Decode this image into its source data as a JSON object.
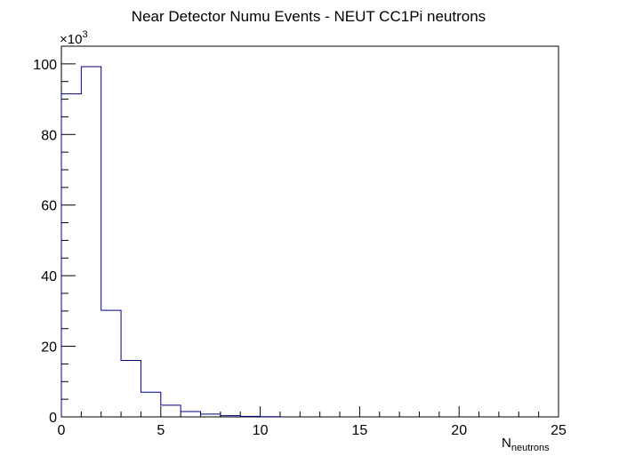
{
  "chart_data": {
    "type": "bar",
    "title": "Near Detector Numu Events - NEUT CC1Pi neutrons",
    "xlabel": "N",
    "xlabel_subscript": "neutrons",
    "ylabel": "",
    "y_multiplier": "×10",
    "y_multiplier_exponent": "3",
    "xlim": [
      0,
      25
    ],
    "ylim": [
      0,
      105
    ],
    "x_tick_labels": [
      "0",
      "5",
      "10",
      "15",
      "20",
      "25"
    ],
    "y_tick_labels": [
      "0",
      "20",
      "40",
      "60",
      "80",
      "100"
    ],
    "bin_edges": [
      0,
      1,
      2,
      3,
      4,
      5,
      6,
      7,
      8,
      9,
      10,
      11
    ],
    "values": [
      91.5,
      99.2,
      30.2,
      16.0,
      7.0,
      3.3,
      1.5,
      0.8,
      0.35,
      0.15,
      0.05
    ],
    "grid": false,
    "legend": "none",
    "line_color": "#000080",
    "frame_color": "#000000"
  }
}
